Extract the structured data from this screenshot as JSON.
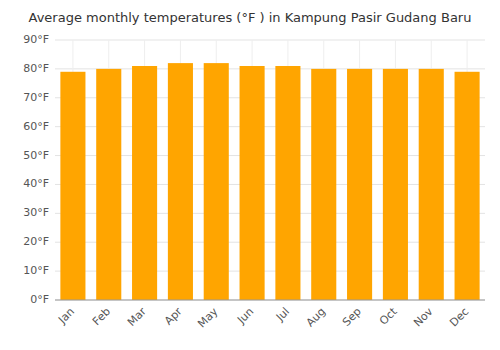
{
  "chart_data": {
    "type": "bar",
    "title": "Average monthly temperatures (°F ) in Kampung Pasir Gudang Baru",
    "categories": [
      "Jan",
      "Feb",
      "Mar",
      "Apr",
      "May",
      "Jun",
      "Jul",
      "Aug",
      "Sep",
      "Oct",
      "Nov",
      "Dec"
    ],
    "values": [
      79,
      80,
      81,
      82,
      82,
      81,
      81,
      80,
      80,
      80,
      80,
      79
    ],
    "color": "#FFA500",
    "ylim": [
      0,
      90
    ],
    "yticks": [
      {
        "value": 0,
        "label": "0°F"
      },
      {
        "value": 10,
        "label": "10°F"
      },
      {
        "value": 20,
        "label": "20°F"
      },
      {
        "value": 30,
        "label": "30°F"
      },
      {
        "value": 40,
        "label": "40°F"
      },
      {
        "value": 50,
        "label": "50°F"
      },
      {
        "value": 60,
        "label": "60°F"
      },
      {
        "value": 70,
        "label": "70°F"
      },
      {
        "value": 80,
        "label": "80°F"
      },
      {
        "value": 90,
        "label": "90°F"
      }
    ],
    "grid": true
  }
}
